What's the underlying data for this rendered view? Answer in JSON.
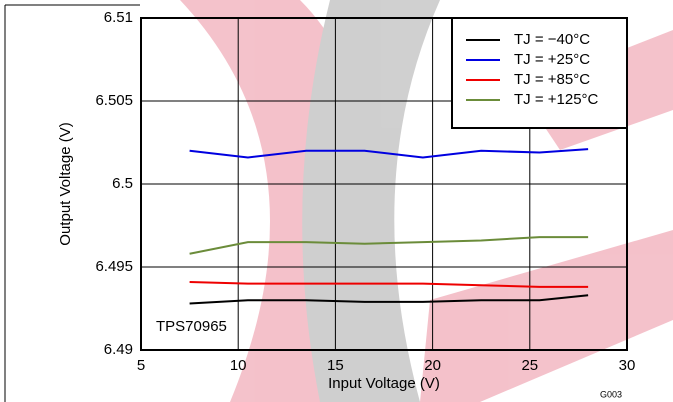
{
  "chart_data": {
    "type": "line",
    "x_label": "Input Voltage (V)",
    "y_label": "Output Voltage (V)",
    "annotation": "TPS70965",
    "figure_id": "G003",
    "x": [
      7.5,
      10.5,
      13.5,
      16.5,
      19.5,
      22.5,
      25.5,
      28
    ],
    "series": [
      {
        "name": "TJ = −40°C",
        "color": "#000000",
        "values": [
          6.4928,
          6.493,
          6.493,
          6.4929,
          6.4929,
          6.493,
          6.493,
          6.4933
        ]
      },
      {
        "name": "TJ = +25°C",
        "color": "#0000e0",
        "values": [
          6.502,
          6.5016,
          6.502,
          6.502,
          6.5016,
          6.502,
          6.5019,
          6.5021
        ]
      },
      {
        "name": "TJ = +85°C",
        "color": "#ee0000",
        "values": [
          6.4941,
          6.494,
          6.494,
          6.494,
          6.494,
          6.4939,
          6.4938,
          6.4938
        ]
      },
      {
        "name": "TJ = +125°C",
        "color": "#6b8c3a",
        "values": [
          6.4958,
          6.4965,
          6.4965,
          6.4964,
          6.4965,
          6.4966,
          6.4968,
          6.4968
        ]
      }
    ],
    "xlim": [
      5,
      30
    ],
    "xticks": [
      5,
      10,
      15,
      20,
      25,
      30
    ],
    "ylim": [
      6.49,
      6.51
    ],
    "yticks": [
      6.49,
      6.495,
      6.5,
      6.505,
      6.51
    ],
    "grid": true,
    "legend": "top-right"
  }
}
